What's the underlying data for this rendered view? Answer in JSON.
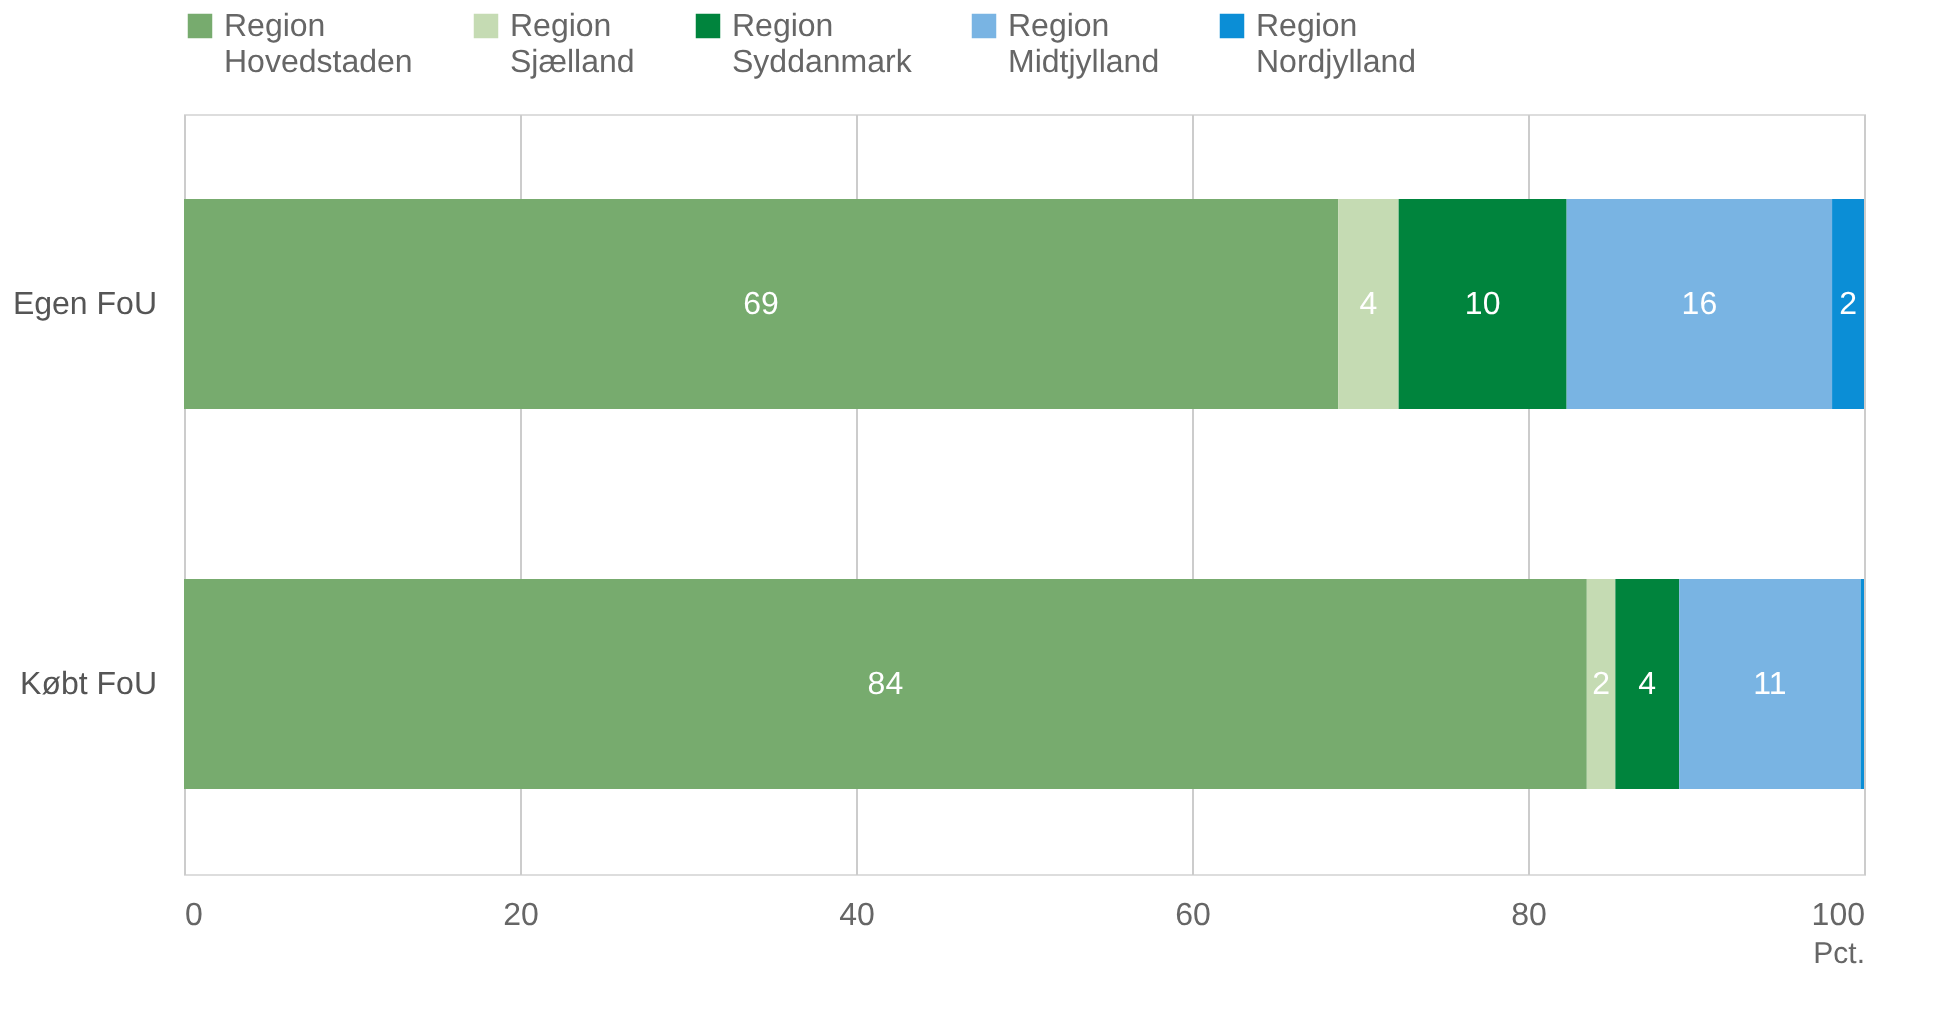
{
  "chart_data": {
    "type": "bar",
    "orientation": "horizontal",
    "stacked": true,
    "categories": [
      "Egen FoU",
      "Købt FoU"
    ],
    "series": [
      {
        "name": "Region Hovedstaden",
        "color": "#77ab6e",
        "values": [
          68.7,
          83.5
        ],
        "value_labels": [
          "69",
          "84"
        ]
      },
      {
        "name": "Region Sjælland",
        "color": "#c5dbb3",
        "values": [
          3.6,
          1.7
        ],
        "value_labels": [
          "4",
          "2"
        ]
      },
      {
        "name": "Region Syddanmark",
        "color": "#00843d",
        "values": [
          10.0,
          3.8
        ],
        "value_labels": [
          "10",
          "4"
        ]
      },
      {
        "name": "Region Midtjylland",
        "color": "#79b4e3",
        "values": [
          15.8,
          10.8
        ],
        "value_labels": [
          "16",
          "11"
        ]
      },
      {
        "name": "Region Nordjylland",
        "color": "#0b8ed6",
        "values": [
          1.9,
          0.2
        ],
        "value_labels": [
          "2",
          null
        ]
      }
    ],
    "xlim": [
      0,
      100
    ],
    "xticks": [
      0,
      20,
      40,
      60,
      80,
      100
    ],
    "xlabel": "Pct.",
    "grid": "x",
    "legend": "top"
  }
}
